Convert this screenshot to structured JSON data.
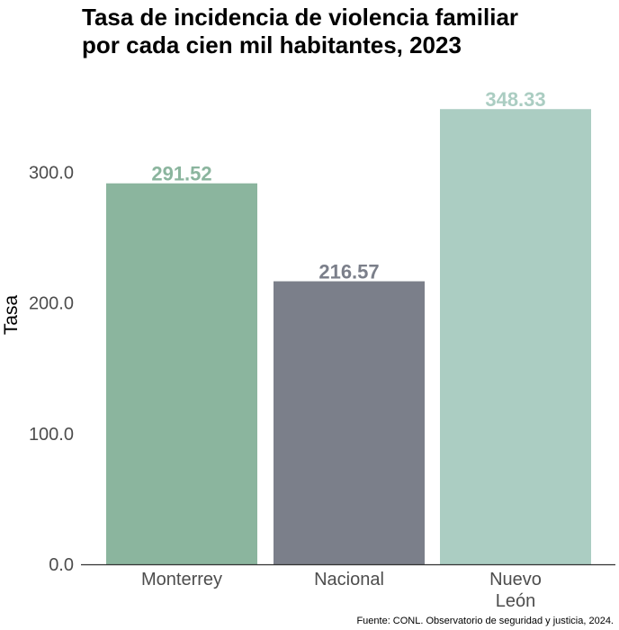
{
  "chart_data": {
    "type": "bar",
    "title_lines": [
      "Tasa de incidencia de violencia familiar",
      "por cada cien mil habitantes, 2023"
    ],
    "ylabel": "Tasa",
    "xlabel": "",
    "categories": [
      [
        "Monterrey"
      ],
      [
        "Nacional"
      ],
      [
        "Nuevo",
        "León"
      ]
    ],
    "values": [
      291.52,
      216.57,
      348.33
    ],
    "value_labels": [
      "291.52",
      "216.57",
      "348.33"
    ],
    "colors": [
      "#8bb59e",
      "#7b7f8a",
      "#abcdc2"
    ],
    "ylim": [
      0,
      370
    ],
    "yticks": [
      0,
      100,
      200,
      300
    ],
    "ytick_labels": [
      "0.0",
      "100.0",
      "200.0",
      "300.0"
    ],
    "grid": false,
    "legend": "none",
    "caption": "Fuente: CONL. Observatorio de seguridad y justicia, 2024."
  }
}
